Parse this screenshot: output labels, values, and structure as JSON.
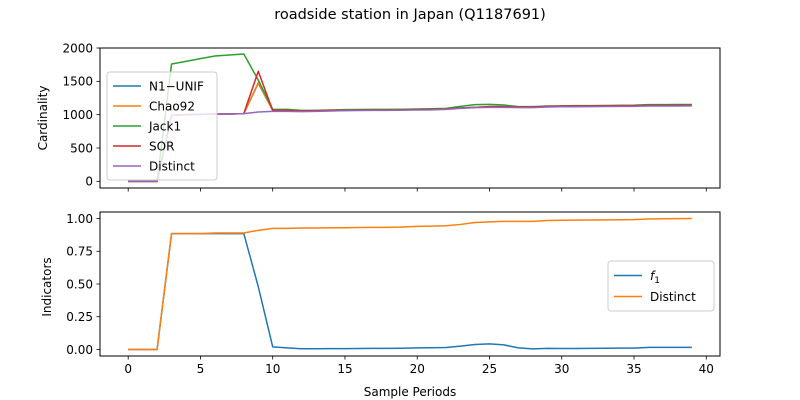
{
  "figure_title": "roadside station in Japan (Q1187691)",
  "chart_data": [
    {
      "type": "line",
      "ylabel": "Cardinality",
      "xlabel": "",
      "xlim": [
        -1.95,
        40.95
      ],
      "ylim": [
        -100,
        2000
      ],
      "xticks": [
        0,
        5,
        10,
        15,
        20,
        25,
        30,
        35,
        40
      ],
      "xtick_labels_visible": false,
      "yticks": [
        0,
        500,
        1000,
        1500,
        2000
      ],
      "ytick_labels": [
        "0",
        "500",
        "1000",
        "1500",
        "2000"
      ],
      "legend_position": "upper-left",
      "x": [
        0,
        1,
        2,
        3,
        4,
        5,
        6,
        7,
        8,
        9,
        10,
        11,
        12,
        13,
        14,
        15,
        16,
        17,
        18,
        19,
        20,
        21,
        22,
        23,
        24,
        25,
        26,
        27,
        28,
        29,
        30,
        31,
        32,
        33,
        34,
        35,
        36,
        37,
        38,
        39
      ],
      "series": [
        {
          "name": "N1−UNIF",
          "color": "#1f77b4",
          "values": [
            0,
            0,
            0,
            990,
            1000,
            1005,
            1010,
            1010,
            1015,
            1470,
            1065,
            1065,
            1055,
            1060,
            1065,
            1065,
            1068,
            1070,
            1070,
            1072,
            1075,
            1078,
            1085,
            1100,
            1110,
            1120,
            1120,
            1115,
            1115,
            1125,
            1128,
            1128,
            1130,
            1132,
            1135,
            1135,
            1140,
            1140,
            1140,
            1142
          ]
        },
        {
          "name": "Chao92",
          "color": "#ff7f0e",
          "values": [
            0,
            0,
            0,
            990,
            1000,
            1005,
            1010,
            1010,
            1015,
            1480,
            1065,
            1065,
            1055,
            1060,
            1065,
            1065,
            1068,
            1070,
            1070,
            1072,
            1075,
            1078,
            1085,
            1100,
            1110,
            1120,
            1120,
            1115,
            1115,
            1125,
            1128,
            1128,
            1130,
            1132,
            1135,
            1135,
            1140,
            1140,
            1140,
            1142
          ]
        },
        {
          "name": "Jack1",
          "color": "#2ca02c",
          "values": [
            0,
            0,
            0,
            1760,
            1800,
            1840,
            1880,
            1895,
            1910,
            1520,
            1080,
            1080,
            1065,
            1065,
            1070,
            1075,
            1078,
            1080,
            1080,
            1082,
            1085,
            1088,
            1095,
            1125,
            1150,
            1155,
            1145,
            1120,
            1120,
            1130,
            1132,
            1135,
            1136,
            1138,
            1140,
            1142,
            1150,
            1150,
            1152,
            1152
          ]
        },
        {
          "name": "SOR",
          "color": "#d62728",
          "values": [
            0,
            0,
            0,
            990,
            1000,
            1005,
            1010,
            1010,
            1015,
            1650,
            1065,
            1065,
            1055,
            1060,
            1065,
            1065,
            1068,
            1070,
            1070,
            1072,
            1075,
            1078,
            1085,
            1100,
            1110,
            1120,
            1120,
            1115,
            1115,
            1125,
            1128,
            1128,
            1130,
            1132,
            1135,
            1135,
            1140,
            1140,
            1140,
            1142
          ]
        },
        {
          "name": "Distinct",
          "color": "#9467bd",
          "values": [
            0,
            0,
            0,
            990,
            1000,
            1005,
            1010,
            1010,
            1015,
            1040,
            1050,
            1050,
            1045,
            1050,
            1055,
            1060,
            1062,
            1065,
            1065,
            1068,
            1070,
            1072,
            1080,
            1095,
            1105,
            1110,
            1110,
            1105,
            1105,
            1115,
            1118,
            1118,
            1120,
            1122,
            1125,
            1125,
            1130,
            1130,
            1130,
            1132
          ]
        }
      ]
    },
    {
      "type": "line",
      "ylabel": "Indicators",
      "xlabel": "Sample Periods",
      "xlim": [
        -1.95,
        40.95
      ],
      "ylim": [
        -0.05,
        1.05
      ],
      "xticks": [
        0,
        5,
        10,
        15,
        20,
        25,
        30,
        35,
        40
      ],
      "xtick_labels": [
        "0",
        "5",
        "10",
        "15",
        "20",
        "25",
        "30",
        "35",
        "40"
      ],
      "yticks": [
        0.0,
        0.25,
        0.5,
        0.75,
        1.0
      ],
      "ytick_labels": [
        "0.00",
        "0.25",
        "0.50",
        "0.75",
        "1.00"
      ],
      "legend_position": "center-right",
      "x": [
        0,
        1,
        2,
        3,
        4,
        5,
        6,
        7,
        8,
        9,
        10,
        11,
        12,
        13,
        14,
        15,
        16,
        17,
        18,
        19,
        20,
        21,
        22,
        23,
        24,
        25,
        26,
        27,
        28,
        29,
        30,
        31,
        32,
        33,
        34,
        35,
        36,
        37,
        38,
        39
      ],
      "series": [
        {
          "name": "f",
          "name_subscript": "1",
          "color": "#1f77b4",
          "values": [
            0,
            0,
            0,
            0.885,
            0.885,
            0.885,
            0.885,
            0.885,
            0.885,
            0.48,
            0.02,
            0.012,
            0.005,
            0.005,
            0.006,
            0.006,
            0.007,
            0.008,
            0.008,
            0.009,
            0.012,
            0.013,
            0.015,
            0.025,
            0.038,
            0.043,
            0.035,
            0.012,
            0.004,
            0.008,
            0.007,
            0.007,
            0.008,
            0.009,
            0.01,
            0.01,
            0.016,
            0.016,
            0.016,
            0.016
          ]
        },
        {
          "name": "Distinct",
          "color": "#ff7f0e",
          "values": [
            0,
            0,
            0,
            0.885,
            0.885,
            0.885,
            0.89,
            0.89,
            0.89,
            0.91,
            0.925,
            0.925,
            0.928,
            0.928,
            0.93,
            0.93,
            0.932,
            0.933,
            0.933,
            0.935,
            0.94,
            0.942,
            0.945,
            0.955,
            0.97,
            0.975,
            0.978,
            0.978,
            0.978,
            0.985,
            0.987,
            0.988,
            0.989,
            0.99,
            0.991,
            0.992,
            0.997,
            0.998,
            0.999,
            1.0
          ]
        }
      ]
    }
  ]
}
